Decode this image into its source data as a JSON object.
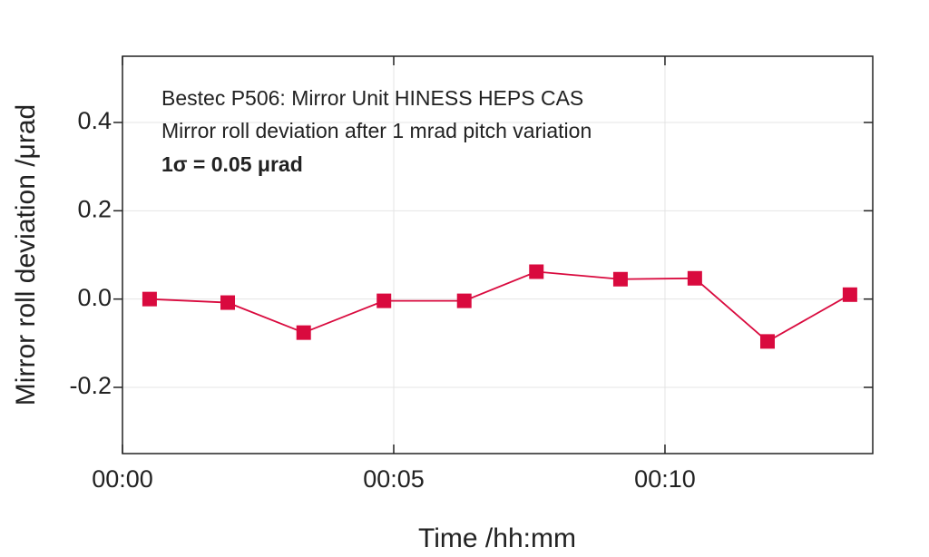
{
  "chart_data": {
    "type": "line",
    "annotations": [
      "Bestec P506: Mirror Unit HINESS HEPS CAS",
      "Mirror roll deviation after 1 mrad pitch variation",
      "1σ = 0.05 μrad"
    ],
    "x_label": "Time /hh:mm",
    "y_label": "Mirror roll deviation /μrad",
    "x": [
      0.5,
      1.94,
      3.34,
      4.82,
      6.3,
      7.63,
      9.18,
      10.55,
      11.89,
      13.41
    ],
    "series": [
      {
        "color": "#d90a3e",
        "values": [
          0.0,
          -0.008,
          -0.076,
          -0.004,
          -0.004,
          0.062,
          0.045,
          0.047,
          -0.096,
          0.01
        ]
      }
    ],
    "xlim": [
      0,
      13.83
    ],
    "ylim": [
      -0.35,
      0.55
    ],
    "xticks": [
      {
        "value": 0,
        "label": "00:00"
      },
      {
        "value": 5,
        "label": "00:05"
      },
      {
        "value": 10,
        "label": "00:10"
      }
    ],
    "yticks": [
      {
        "value": -0.2,
        "label": "-0.2"
      },
      {
        "value": 0,
        "label": "0.0"
      },
      {
        "value": 0.2,
        "label": "0.2"
      },
      {
        "value": 0.4,
        "label": "0.4"
      }
    ],
    "grid": true
  }
}
